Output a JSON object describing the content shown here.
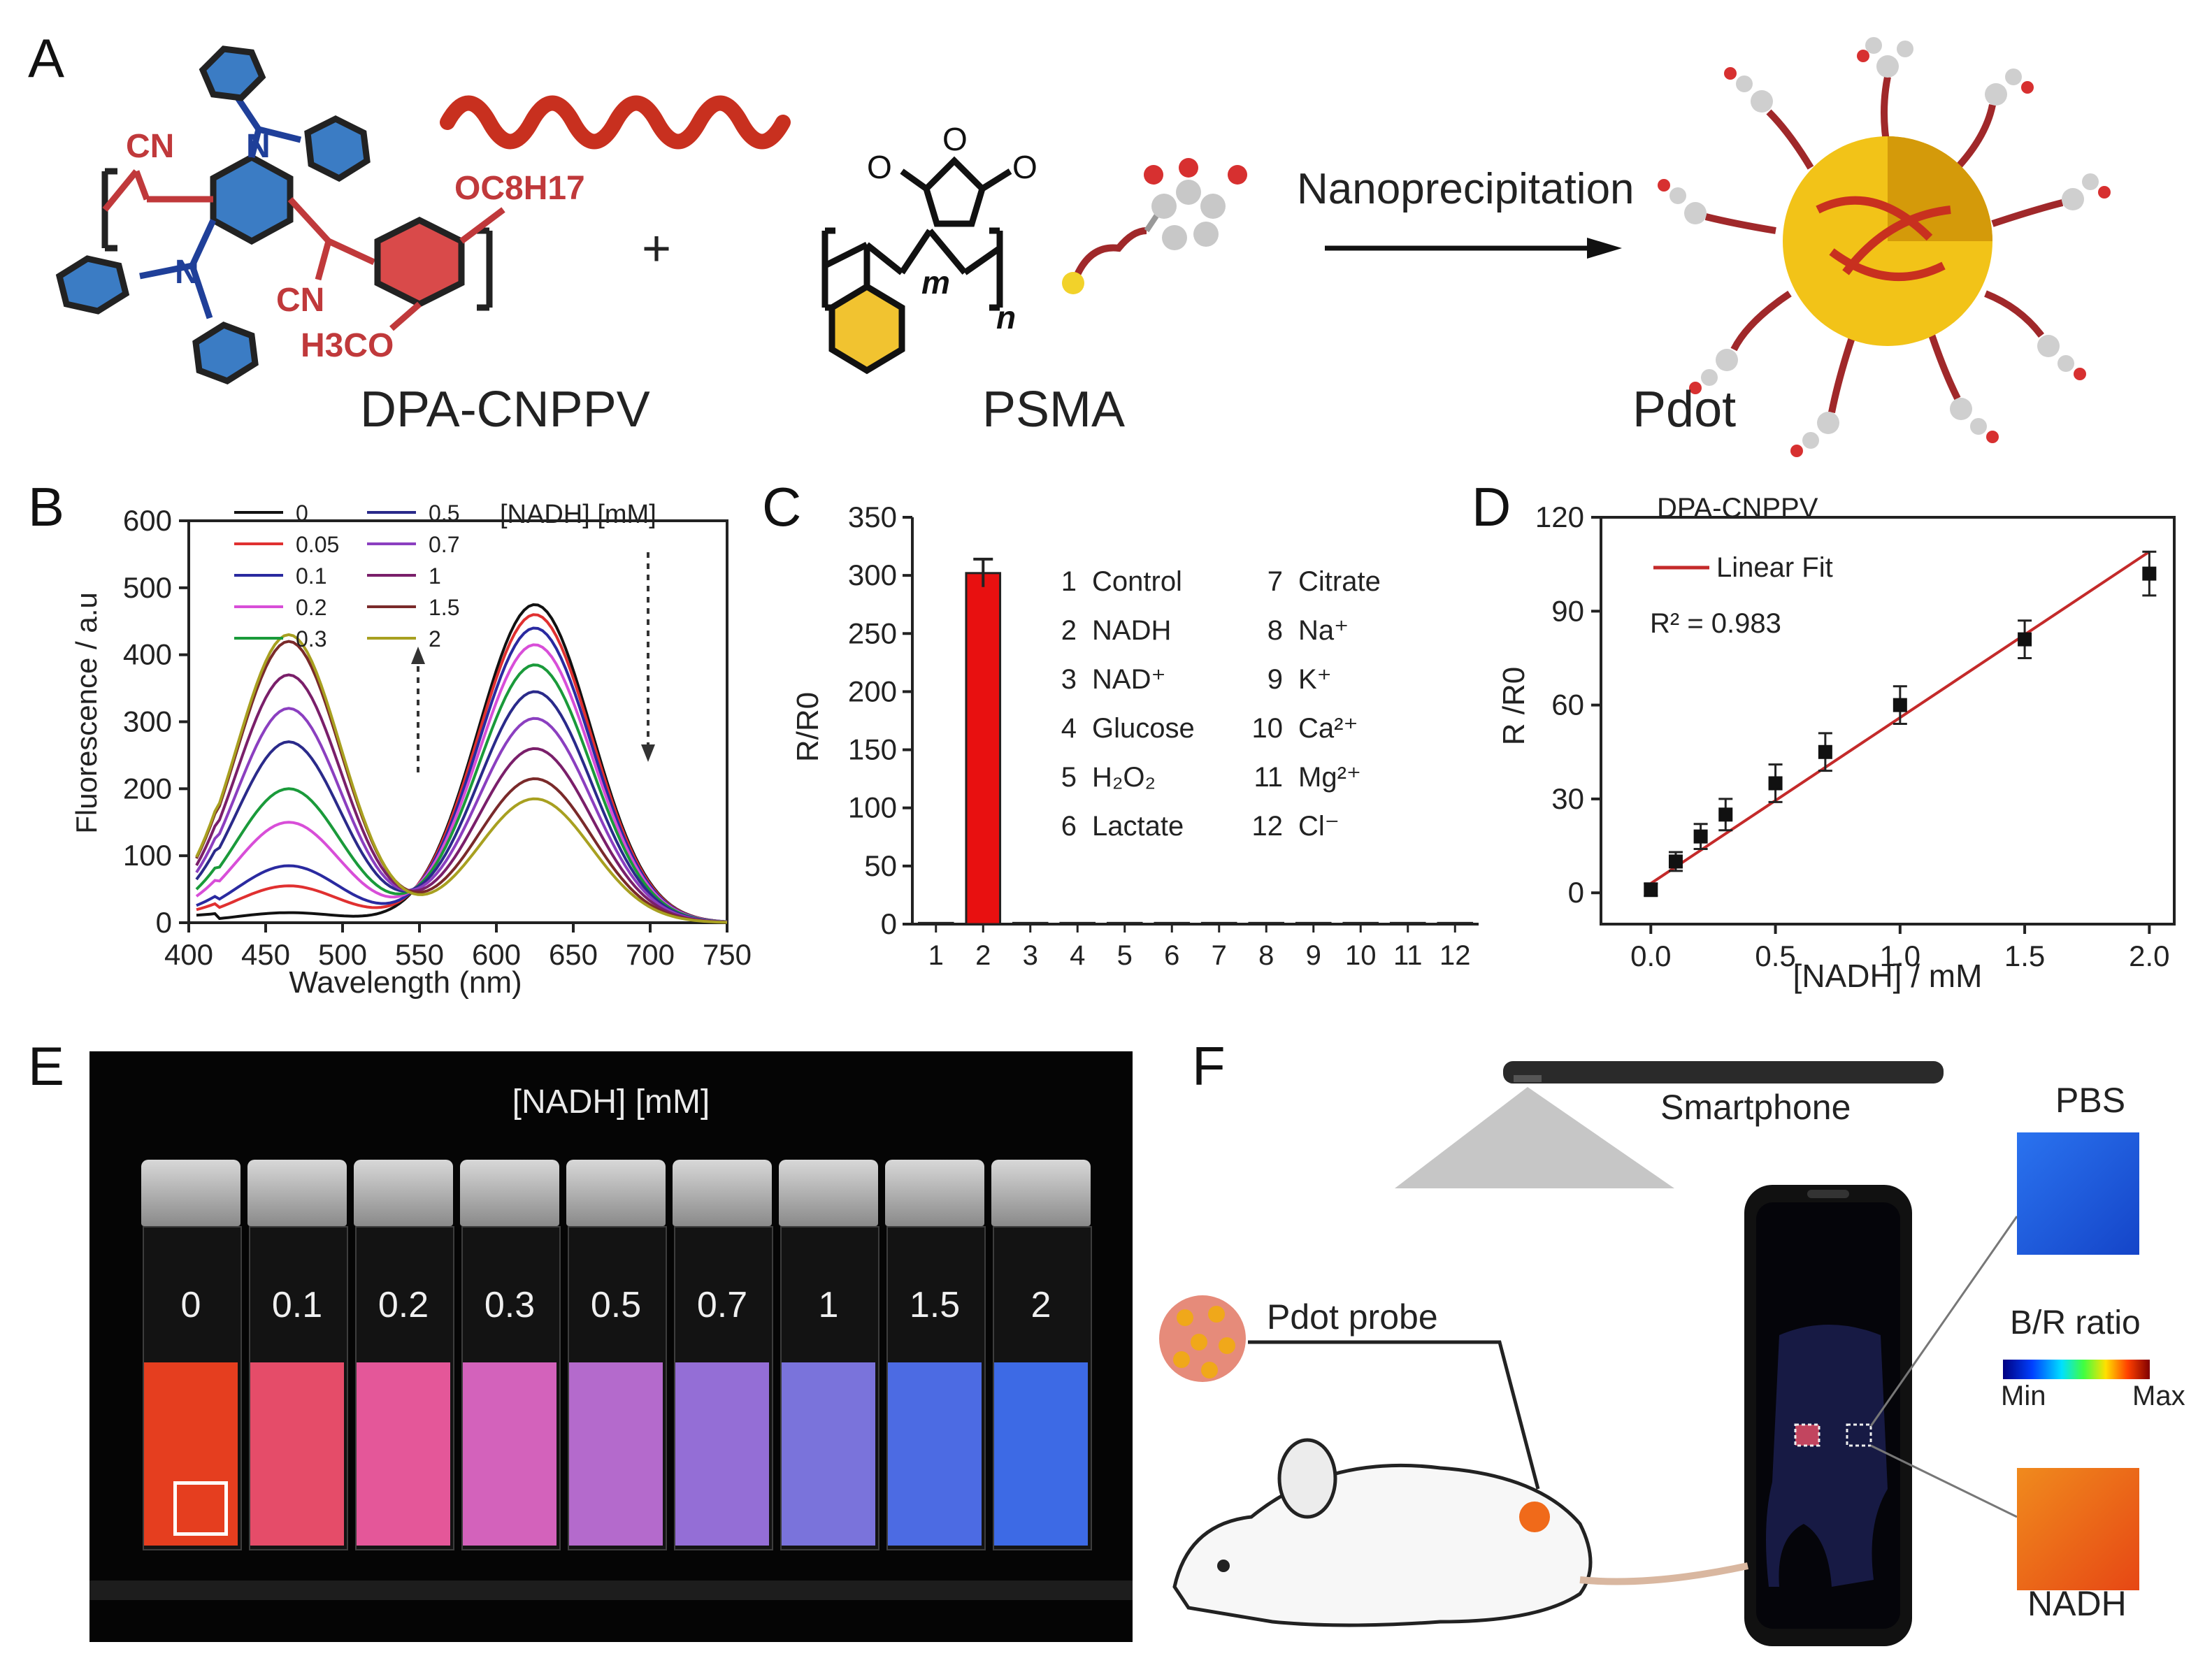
{
  "panel_labels": {
    "a": "A",
    "b": "B",
    "c": "C",
    "d": "D",
    "e": "E",
    "f": "F"
  },
  "panel_a": {
    "dpa_name": "DPA-CNPPV",
    "psma_name": "PSMA",
    "pdot_name": "Pdot",
    "plus": "+",
    "arrow_label": "Nanoprecipitation",
    "chem_cn": "CN",
    "chem_n": "N",
    "chem_oc8h17": "OC8H17",
    "chem_h3co": "H3CO",
    "chem_o": "O",
    "chem_m": "m",
    "chem_n_idx": "n",
    "colors": {
      "phenyl": "#3b7cc4",
      "cn_red": "#c0393b",
      "n_blue": "#1f3f99",
      "helix": "#c8301f",
      "pdot_core": "#f2c318",
      "psma_ring": "#f1c330"
    }
  },
  "panel_b": {
    "legend_title": "[NADH] [mM]",
    "colors": [
      "#111111",
      "#e03030",
      "#2a2aa0",
      "#d84ed8",
      "#1a9a3a",
      "#2a2a8a",
      "#8b3fc0",
      "#7a1f6a",
      "#7a2a2a",
      "#a8a020"
    ],
    "chart_data": {
      "type": "line",
      "title": "",
      "xlabel": "Wavelength (nm)",
      "ylabel": "Fluorescence / a.u",
      "xlim": [
        400,
        750
      ],
      "ylim": [
        0,
        600
      ],
      "xticks": [
        400,
        450,
        500,
        550,
        600,
        650,
        700,
        750
      ],
      "yticks": [
        0,
        100,
        200,
        300,
        400,
        500,
        600
      ],
      "series": [
        {
          "name": "0",
          "peak_blue": 15,
          "peak_red": 475
        },
        {
          "name": "0.05",
          "peak_blue": 55,
          "peak_red": 460
        },
        {
          "name": "0.1",
          "peak_blue": 85,
          "peak_red": 440
        },
        {
          "name": "0.2",
          "peak_blue": 150,
          "peak_red": 415
        },
        {
          "name": "0.3",
          "peak_blue": 200,
          "peak_red": 385
        },
        {
          "name": "0.5",
          "peak_blue": 270,
          "peak_red": 345
        },
        {
          "name": "0.7",
          "peak_blue": 320,
          "peak_red": 305
        },
        {
          "name": "1",
          "peak_blue": 370,
          "peak_red": 260
        },
        {
          "name": "1.5",
          "peak_blue": 420,
          "peak_red": 215
        },
        {
          "name": "2",
          "peak_blue": 430,
          "peak_red": 185
        }
      ]
    }
  },
  "panel_c": {
    "legend": [
      [
        "1",
        "Control"
      ],
      [
        "2",
        "NADH"
      ],
      [
        "3",
        "NAD⁺"
      ],
      [
        "4",
        "Glucose"
      ],
      [
        "5",
        "H₂O₂"
      ],
      [
        "6",
        "Lactate"
      ],
      [
        "7",
        "Citrate"
      ],
      [
        "8",
        "Na⁺"
      ],
      [
        "9",
        "K⁺"
      ],
      [
        "10",
        "Ca²⁺"
      ],
      [
        "11",
        "Mg²⁺"
      ],
      [
        "12",
        "Cl⁻"
      ]
    ],
    "chart_data": {
      "type": "bar",
      "categories": [
        "1",
        "2",
        "3",
        "4",
        "5",
        "6",
        "7",
        "8",
        "9",
        "10",
        "11",
        "12"
      ],
      "values": [
        1,
        302,
        1,
        1,
        1,
        1,
        1,
        1,
        1,
        1,
        1,
        1
      ],
      "errors": [
        0,
        12,
        0,
        0,
        0,
        0,
        0,
        0,
        0,
        0,
        0,
        0
      ],
      "title": "",
      "xlabel": "",
      "ylabel": "R/R0",
      "ylim": [
        0,
        350
      ],
      "yticks": [
        0,
        50,
        100,
        150,
        200,
        250,
        300,
        350
      ],
      "bar_color": "#e81010"
    }
  },
  "panel_d": {
    "series_name": "DPA-CNPPV",
    "fit_label": "Linear Fit",
    "r2_label": "R² = 0.983",
    "fit_color": "#c42a2a",
    "chart_data": {
      "type": "scatter",
      "title": "",
      "xlabel": "[NADH] / mM",
      "ylabel": "R /R0",
      "xlim": [
        -0.2,
        2.1
      ],
      "ylim": [
        -10,
        120
      ],
      "xticks": [
        "0.0",
        "0.5",
        "1.0",
        "1.5",
        "2.0"
      ],
      "yticks": [
        0,
        30,
        60,
        90,
        120
      ],
      "x": [
        0,
        0.1,
        0.2,
        0.3,
        0.5,
        0.7,
        1.0,
        1.5,
        2.0
      ],
      "y": [
        1,
        10,
        18,
        25,
        35,
        45,
        60,
        81,
        102
      ],
      "yerr": [
        2,
        3,
        4,
        5,
        6,
        6,
        6,
        6,
        7
      ],
      "fit": {
        "slope": 53,
        "intercept": 3
      }
    }
  },
  "panel_e": {
    "title": "[NADH] [mM]",
    "vials": [
      {
        "label": "0",
        "color": "#f04020"
      },
      {
        "label": "0.1",
        "color": "#f04f6e"
      },
      {
        "label": "0.2",
        "color": "#ef5ba0"
      },
      {
        "label": "0.3",
        "color": "#dd66c4"
      },
      {
        "label": "0.5",
        "color": "#bd6fd6"
      },
      {
        "label": "0.7",
        "color": "#9b73e0"
      },
      {
        "label": "1",
        "color": "#7f78e6"
      },
      {
        "label": "1.5",
        "color": "#4f70ee"
      },
      {
        "label": "2",
        "color": "#3f6ff0"
      }
    ]
  },
  "panel_f": {
    "smartphone": "Smartphone",
    "pdot_probe": "Pdot probe",
    "pbs": "PBS",
    "br_ratio": "B/R ratio",
    "min": "Min",
    "max": "Max",
    "nadh": "NADH",
    "colors": {
      "pbs_square": "#1b5ae0",
      "nadh_square": "#f06a1a"
    }
  }
}
